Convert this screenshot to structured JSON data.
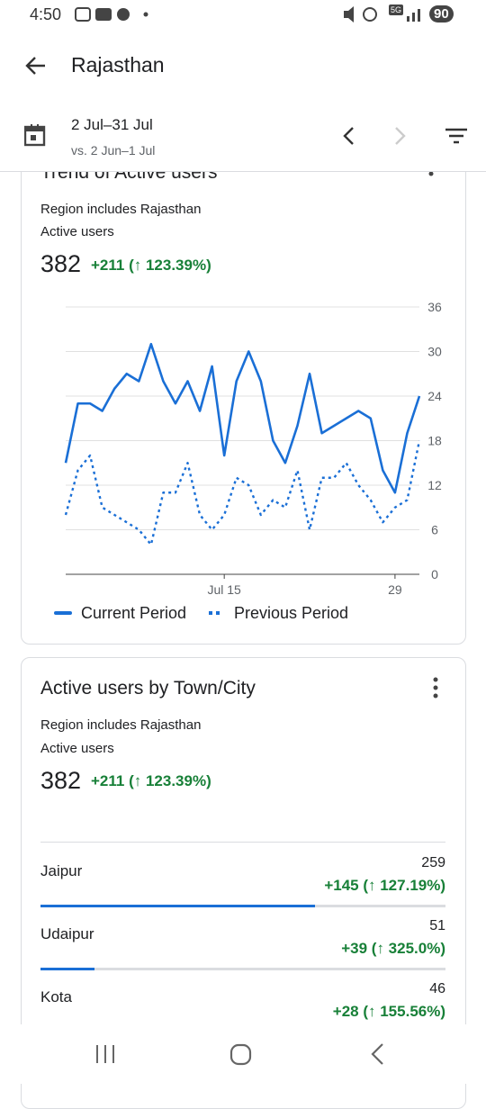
{
  "status": {
    "time": "4:50",
    "network": "5G",
    "battery": "90"
  },
  "header": {
    "title": "Rajasthan"
  },
  "date_range": {
    "range": "2 Jul–31 Jul",
    "comparison": "vs. 2 Jun–1 Jul"
  },
  "trend_card": {
    "title": "Trend of Active users",
    "note": "Region includes Rajasthan",
    "metric": "Active users",
    "total": 382,
    "change": "+211 (↑ 123.39%)",
    "chart": {
      "type": "line",
      "x": [
        2,
        3,
        4,
        5,
        6,
        7,
        8,
        9,
        10,
        11,
        12,
        13,
        14,
        15,
        16,
        17,
        18,
        19,
        20,
        21,
        22,
        23,
        24,
        25,
        26,
        27,
        28,
        29,
        30,
        31
      ],
      "xlim": [
        2,
        31
      ],
      "xticks": [
        {
          "value": 15,
          "label": "Jul 15"
        },
        29
      ],
      "ylim": [
        0,
        36
      ],
      "yticks": [
        0,
        6,
        12,
        18,
        24,
        30,
        36
      ],
      "grid": true,
      "series": [
        {
          "name": "Current Period",
          "color": "#1a6fd6",
          "style": "solid",
          "values": [
            15,
            23,
            23,
            22,
            25,
            27,
            26,
            31,
            26,
            23,
            26,
            22,
            28,
            16,
            26,
            30,
            26,
            18,
            15,
            20,
            27,
            19,
            20,
            21,
            22,
            21,
            14,
            11,
            19,
            24
          ]
        },
        {
          "name": "Previous Period",
          "color": "#1a6fd6",
          "style": "dotted",
          "values": [
            8,
            14,
            16,
            9,
            8,
            7,
            6,
            4,
            11,
            11,
            15,
            8,
            6,
            8,
            13,
            12,
            8,
            10,
            9,
            14,
            6,
            13,
            13,
            15,
            12,
            10,
            7,
            9,
            10,
            18
          ]
        }
      ]
    }
  },
  "city_card": {
    "title": "Active users by Town/City",
    "note": "Region includes Rajasthan",
    "metric": "Active users",
    "total": 382,
    "change": "+211 (↑ 123.39%)",
    "rows": [
      {
        "city": "Jaipur",
        "value": 259,
        "change": "+145 (↑ 127.19%)"
      },
      {
        "city": "Udaipur",
        "value": 51,
        "change": "+39 (↑ 325.0%)"
      },
      {
        "city": "Kota",
        "value": 46,
        "change": "+28 (↑ 155.56%)"
      }
    ]
  }
}
